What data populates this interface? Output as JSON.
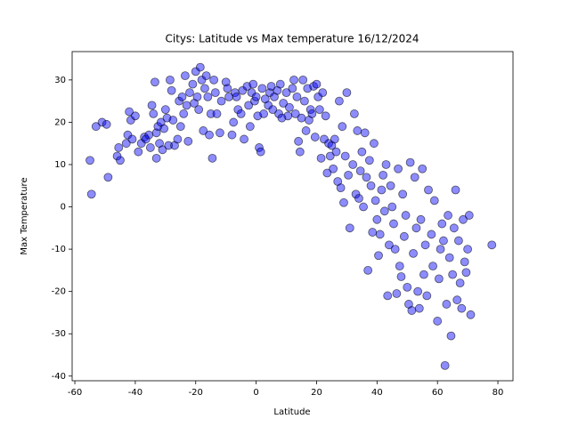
{
  "chart_data": {
    "type": "scatter",
    "title": "Citys: Latitude vs Max temperature 16/12/2024",
    "x_label": "Latitude",
    "y_label": "Max Temperature",
    "color": "#0000ff",
    "xlim": [
      -60.9,
      85
    ],
    "ylim": [
      -41.1,
      36.7
    ],
    "xticks": [
      -60,
      -40,
      -20,
      0,
      20,
      40,
      60,
      80
    ],
    "yticks": [
      -40,
      -30,
      -20,
      -10,
      0,
      10,
      20,
      30
    ],
    "x": [
      -55,
      -54.5,
      -53,
      -51,
      -49,
      -49.5,
      -46,
      -45.5,
      -45,
      -43,
      -42.5,
      -42,
      -41.5,
      -41,
      -40,
      -39,
      -38,
      -37,
      -36.5,
      -35.5,
      -35,
      -34.5,
      -34,
      -33.5,
      -33,
      -33,
      -32.5,
      -32,
      -31.5,
      -31,
      -30.5,
      -30,
      -29.5,
      -29,
      -28.5,
      -28,
      -27.5,
      -27,
      -26,
      -25.5,
      -25,
      -24.5,
      -24,
      -23.5,
      -23,
      -22.5,
      -22,
      -21,
      -20.5,
      -20,
      -19.5,
      -19,
      -18.5,
      -18,
      -17.5,
      -17,
      -16.5,
      -16,
      -15.5,
      -15,
      -14.5,
      -14,
      -13.5,
      -13,
      -12,
      -11.5,
      -10,
      -9.5,
      -9,
      -8,
      -7.5,
      -7,
      -6.5,
      -6,
      -5,
      -4.5,
      -4,
      -3,
      -2.5,
      -2,
      -1.5,
      -1,
      -0.5,
      0,
      0.5,
      1,
      1.5,
      2,
      2.5,
      3,
      4,
      4.5,
      5,
      5.5,
      6,
      7,
      7.5,
      8,
      8.5,
      9,
      10,
      10.5,
      11,
      12,
      12.5,
      13,
      13.5,
      14,
      14.5,
      15,
      15.5,
      16,
      16.5,
      17,
      17.5,
      18,
      18.5,
      19,
      19.5,
      20,
      20.5,
      21,
      21.5,
      22,
      22.5,
      23,
      23.5,
      24,
      24.5,
      25,
      25.5,
      26,
      26.5,
      27,
      27.5,
      28,
      28.5,
      29,
      29.5,
      30,
      30.5,
      31,
      32,
      32.5,
      33,
      33.5,
      34,
      34.5,
      35,
      35.5,
      36,
      36.5,
      37,
      37.5,
      38,
      38.5,
      39,
      39.5,
      40,
      40.5,
      41,
      41.5,
      42,
      42.5,
      43,
      43.5,
      44,
      44.5,
      45,
      45.5,
      46,
      46.5,
      47,
      47.5,
      48,
      48.5,
      49,
      49.5,
      50,
      50.5,
      51,
      51.5,
      52,
      52.5,
      53,
      53.5,
      54,
      54.5,
      55,
      55.5,
      56,
      56.5,
      57,
      58,
      58.5,
      59,
      60,
      60.5,
      61,
      61.5,
      62,
      62.5,
      63,
      63.5,
      64,
      64.5,
      65,
      65.5,
      66,
      66.5,
      67,
      67.5,
      68,
      68.5,
      69,
      69.5,
      70,
      70.5,
      71,
      78
    ],
    "values": [
      11,
      3,
      19,
      20,
      7,
      19.5,
      12,
      14,
      11,
      15,
      17,
      22.5,
      20.5,
      16,
      21.5,
      13,
      15,
      16.5,
      16,
      17,
      14,
      24,
      22,
      29.5,
      17.5,
      11.5,
      19,
      15,
      20,
      13.5,
      18.5,
      23,
      21,
      14.5,
      30,
      27.5,
      20.5,
      14.5,
      16,
      25,
      19,
      26,
      22,
      31,
      24,
      15.5,
      27,
      29,
      24.5,
      32,
      26,
      23,
      33,
      30,
      18,
      28,
      31,
      26,
      17,
      22,
      11.5,
      30,
      27,
      22,
      17.5,
      25,
      29.5,
      28,
      26,
      17,
      20,
      27,
      26,
      23,
      22,
      27.5,
      16,
      28.5,
      24,
      19,
      27,
      29,
      25,
      26,
      21.5,
      14,
      13,
      28,
      22,
      25.5,
      24,
      27,
      28.5,
      23,
      26,
      27.5,
      22,
      29,
      21,
      24.5,
      27,
      21.5,
      23.5,
      28,
      30,
      22,
      26,
      15.5,
      13,
      21,
      30,
      25,
      18,
      28,
      20.5,
      23,
      22,
      28.5,
      16.5,
      29,
      26,
      23,
      11.5,
      27,
      16,
      21.5,
      8,
      15,
      12,
      14.5,
      9,
      16,
      13,
      6,
      25,
      4.5,
      19,
      1,
      12,
      27,
      7.5,
      -5,
      10,
      22,
      3,
      18,
      2,
      8.5,
      13,
      0,
      17.5,
      7,
      -15,
      11,
      5,
      -6,
      15,
      1.5,
      -3,
      -11.5,
      -6.5,
      4,
      7.5,
      -1,
      10,
      -21,
      -9,
      5,
      0,
      -4,
      -10,
      -20.5,
      9,
      -14,
      -16.5,
      3,
      -7,
      -2,
      -19,
      -23,
      10.5,
      -24.5,
      -11,
      7,
      -5,
      -20,
      -24,
      -3,
      9,
      -16,
      -9,
      -21,
      4,
      -6.5,
      -14,
      1.5,
      -27,
      -17,
      -10,
      -4,
      -8,
      -37.5,
      -23,
      -2,
      -12,
      -30.5,
      -16,
      -5,
      4,
      -22,
      -8,
      -18,
      -24,
      -3,
      -13,
      -15.5,
      -10,
      -2,
      -25.5,
      -9
    ]
  }
}
